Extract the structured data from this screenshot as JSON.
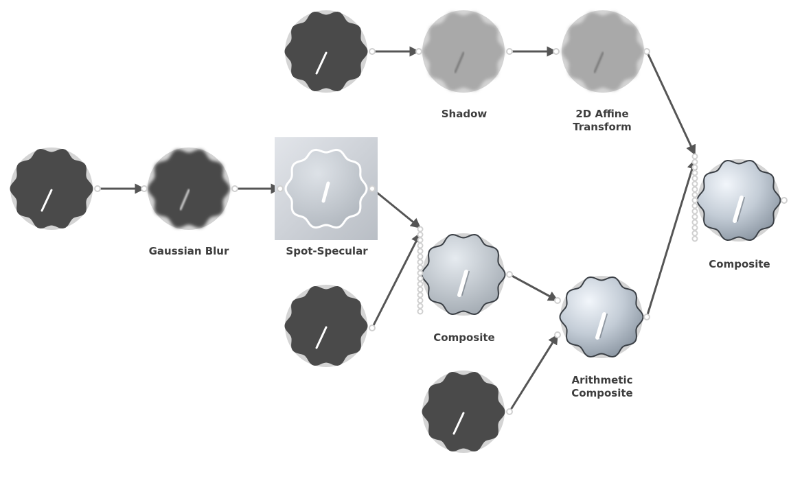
{
  "graph": {
    "labels": {
      "shadow": "Shadow",
      "affine": "2D Affine\nTransform",
      "gaussian": "Gaussian Blur",
      "spot": "Spot-Specular",
      "composite_mid": "Composite",
      "arith": "Arithmetic\nComposite",
      "composite_final": "Composite"
    }
  },
  "colors": {
    "dark_knob": "#4a4a4a",
    "light_grey_knob": "#a9a9a9",
    "arrow": "#555555",
    "port": "#d0d0d0",
    "label": "#3e3e3e"
  }
}
